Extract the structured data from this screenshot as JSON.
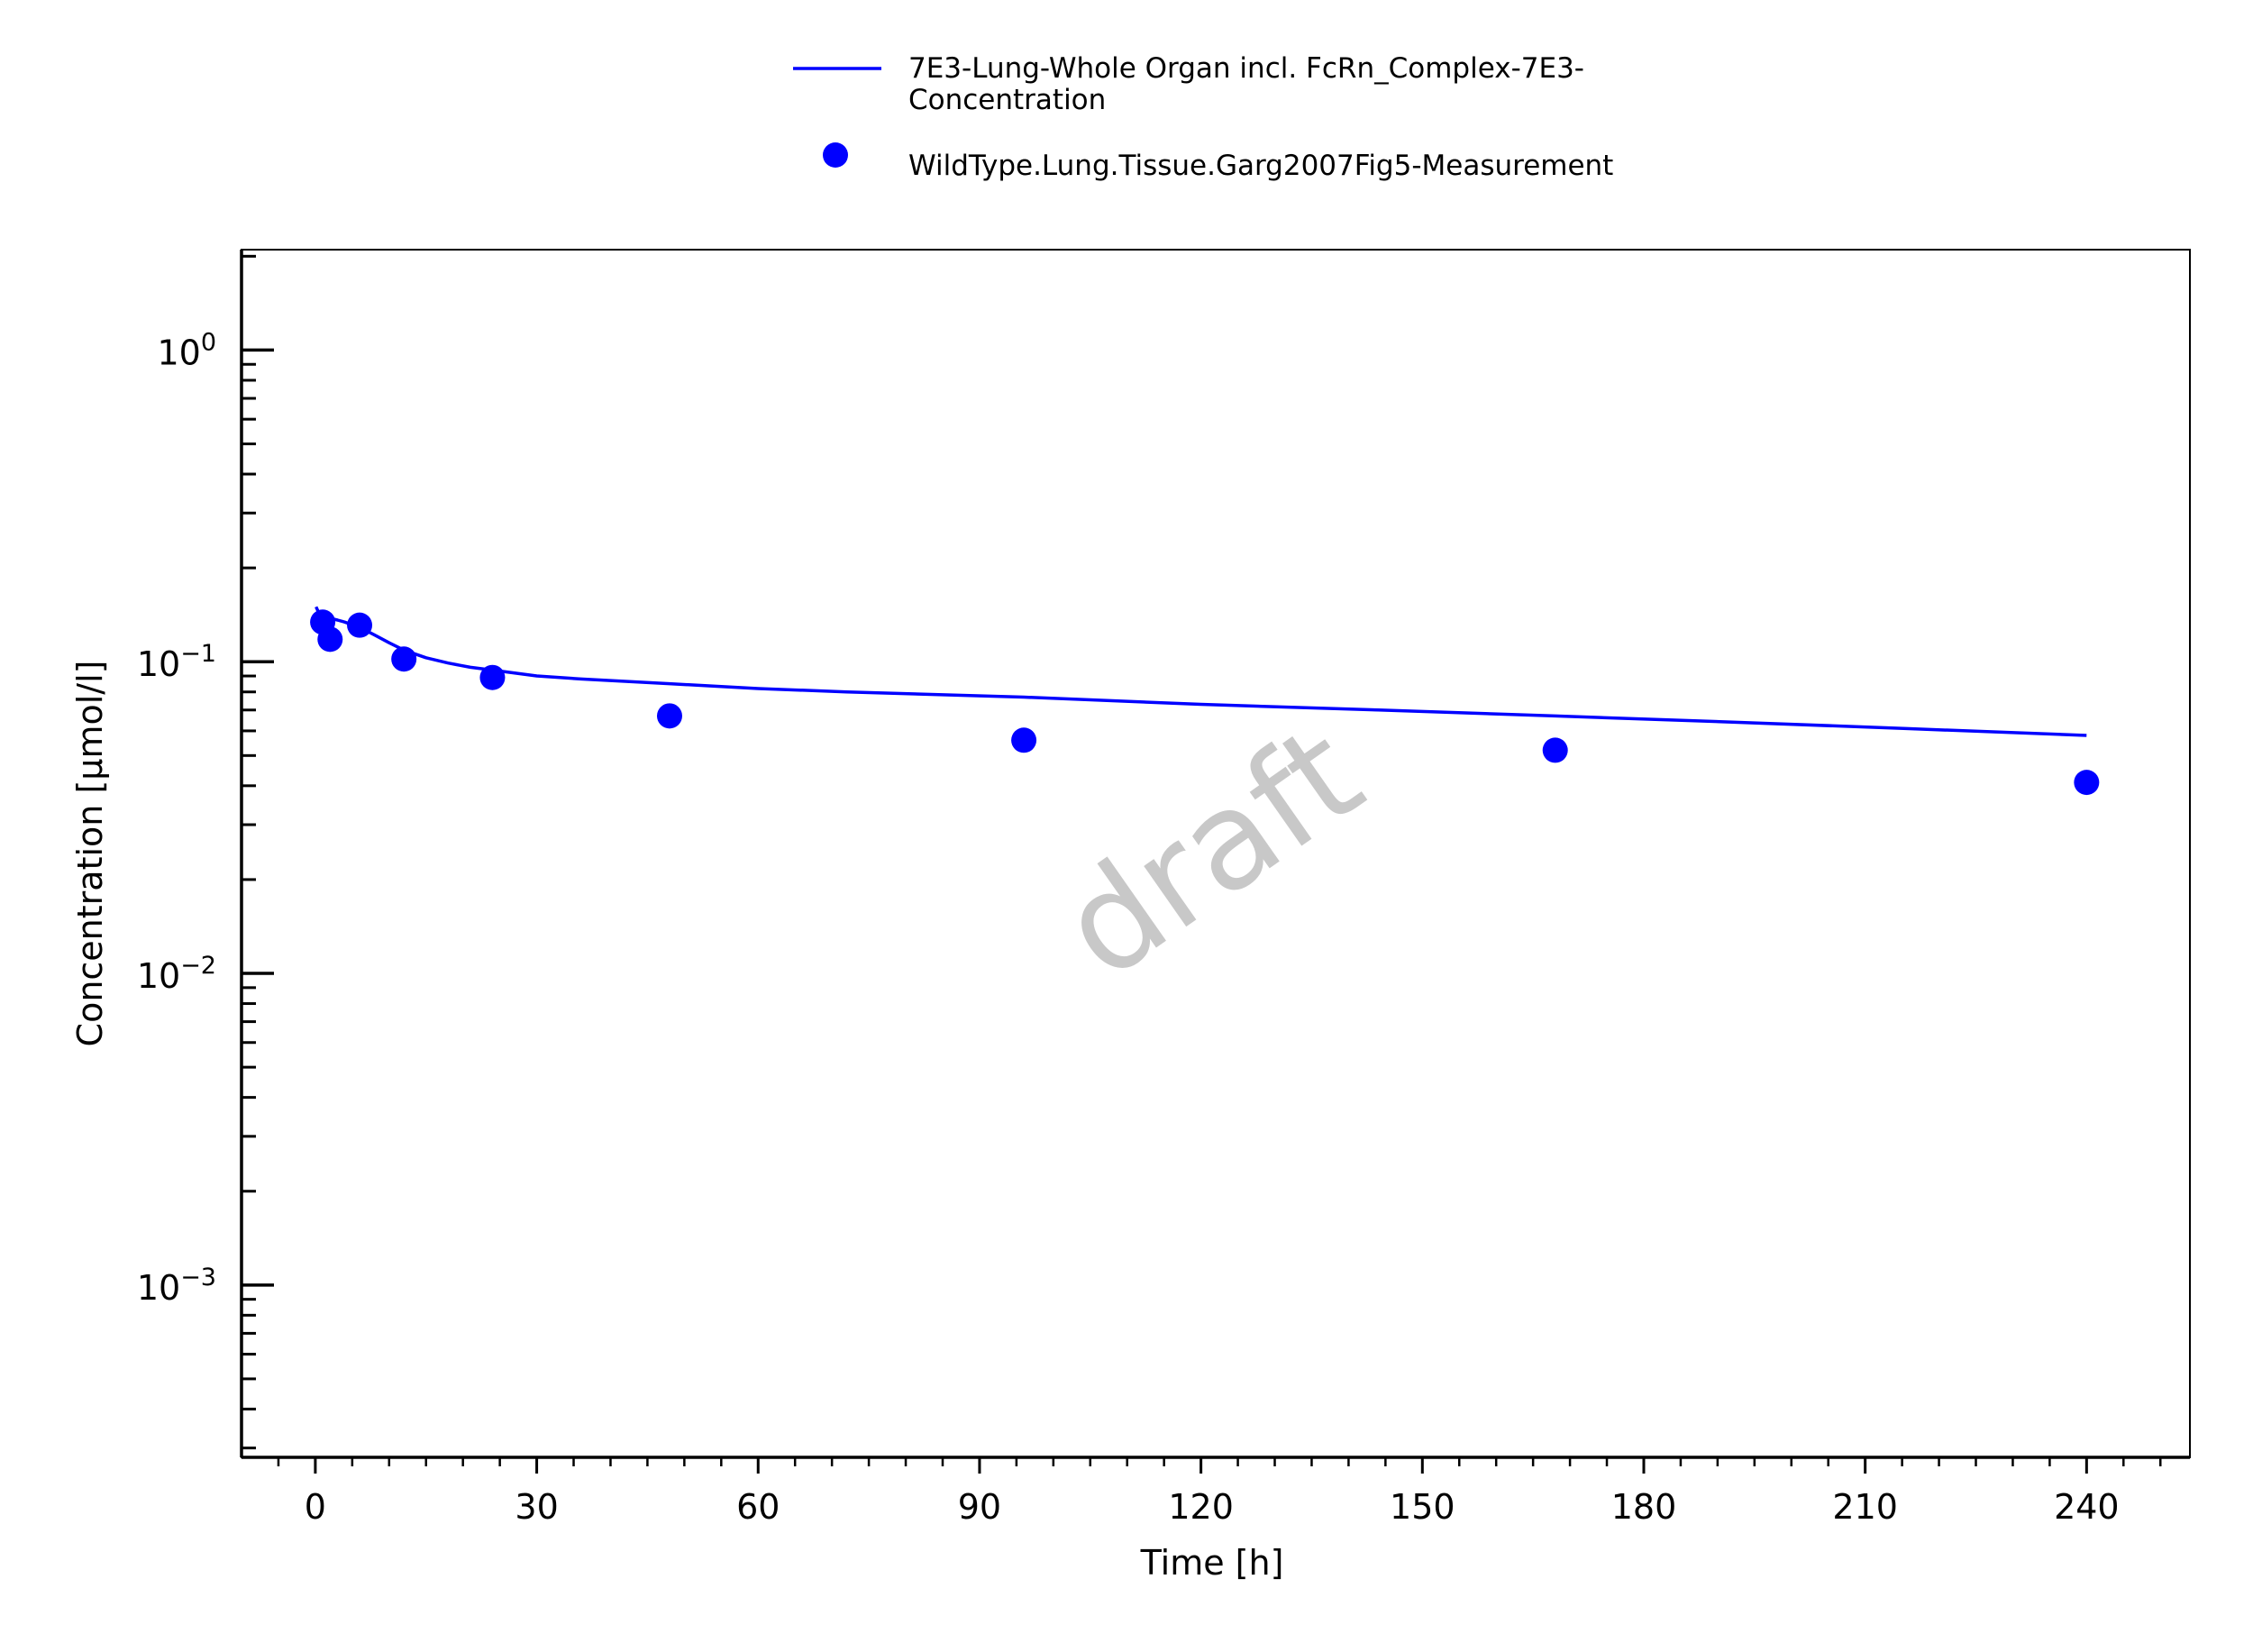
{
  "chart_data": {
    "type": "line",
    "title": "",
    "xlabel": "Time [h]",
    "ylabel": "Concentration [µmol/l]",
    "xlim": [
      -10,
      254
    ],
    "ylim": [
      0.00028,
      2.1
    ],
    "yscale": "log",
    "x_ticks": [
      "0",
      "30",
      "60",
      "90",
      "120",
      "150",
      "180",
      "210",
      "240"
    ],
    "x_tick_values": [
      0,
      30,
      60,
      90,
      120,
      150,
      180,
      210,
      240
    ],
    "y_ticks": [
      {
        "base": "10",
        "exp": "0",
        "value": 1
      },
      {
        "base": "10",
        "exp": "−1",
        "value": 0.1
      },
      {
        "base": "10",
        "exp": "−2",
        "value": 0.01
      },
      {
        "base": "10",
        "exp": "−3",
        "value": 0.001
      }
    ],
    "grid": false,
    "legend_position": "top-center",
    "watermark": "draft",
    "series": [
      {
        "name": "7E3-Lung-Whole Organ incl. FcRn_Complex-7E3-Concentration",
        "legend_lines": [
          "7E3-Lung-Whole Organ incl. FcRn_Complex-7E3-",
          "Concentration"
        ],
        "type": "line",
        "color": "#0000ff",
        "x": [
          0.1,
          0.5,
          1,
          2,
          3,
          4,
          6,
          8,
          10,
          12,
          15,
          18,
          21,
          24,
          30,
          36,
          48,
          60,
          72,
          96,
          120,
          144,
          168,
          192,
          216,
          240
        ],
        "y": [
          0.15,
          0.143,
          0.14,
          0.138,
          0.136,
          0.134,
          0.129,
          0.122,
          0.115,
          0.109,
          0.103,
          0.099,
          0.096,
          0.094,
          0.09,
          0.088,
          0.085,
          0.082,
          0.08,
          0.077,
          0.073,
          0.07,
          0.067,
          0.064,
          0.061,
          0.058
        ]
      },
      {
        "name": "WildType.Lung.Tissue.Garg2007Fig5-Measurement",
        "legend_lines": [
          "WildType.Lung.Tissue.Garg2007Fig5-Measurement"
        ],
        "type": "scatter",
        "color": "#0000ff",
        "x": [
          1,
          2,
          6,
          12,
          24,
          48,
          96,
          168,
          240
        ],
        "y": [
          0.134,
          0.118,
          0.131,
          0.102,
          0.089,
          0.067,
          0.056,
          0.052,
          0.041
        ]
      }
    ]
  }
}
